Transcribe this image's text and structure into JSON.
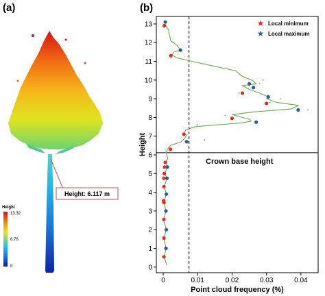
{
  "panel_a": {
    "label": "(a)",
    "callout": "Height: 6.117 m",
    "colorbar": {
      "title": "Height",
      "max": "13.32",
      "mid": "6.76",
      "min": "0"
    }
  },
  "panel_b": {
    "label": "(b)"
  },
  "chart_data": {
    "type": "line",
    "xlabel": "Point cloud frequency (%)",
    "ylabel": "Height",
    "xlim": [
      -0.002,
      0.045
    ],
    "ylim": [
      -0.3,
      13.4
    ],
    "xticks": [
      "0",
      "0.01",
      "0.02",
      "0.03",
      "0.04"
    ],
    "xtick_values": [
      0,
      0.01,
      0.02,
      0.03,
      0.04
    ],
    "yticks": [
      "0",
      "1",
      "2",
      "3",
      "4",
      "5",
      "6",
      "7",
      "8",
      "9",
      "10",
      "11",
      "12",
      "13"
    ],
    "crown_base_height": 6.117,
    "crown_base_label": "Crown base height",
    "dashed_x": 0.0075,
    "legend": [
      {
        "name": "Local minimum",
        "color": "#e8291c"
      },
      {
        "name": "Local maximum",
        "color": "#2a5e9b"
      }
    ],
    "series": [
      {
        "name": "",
        "color": "#6aa84f",
        "x": [
          0.001,
          0.0003,
          0.0008,
          0.0002,
          0.0009,
          0.0001,
          0.0008,
          0.0002,
          0.0009,
          0.0003,
          0.0011,
          0.0004,
          0.0012,
          0.0006,
          0.0013,
          0.0009,
          0.0012,
          0.0021,
          0.0052,
          0.0062,
          0.0068,
          0.006,
          0.0067,
          0.0091,
          0.0138,
          0.0188,
          0.0232,
          0.0255,
          0.025,
          0.023,
          0.02,
          0.0265,
          0.0372,
          0.0392,
          0.033,
          0.03,
          0.0305,
          0.028,
          0.025,
          0.023,
          0.027,
          0.0262,
          0.023,
          0.021,
          0.0145,
          0.0083,
          0.0038,
          0.0025,
          0.0032,
          0.005,
          0.004,
          0.0022,
          0.0018,
          0.0015,
          0.0008,
          0.0004,
          0.0006
        ],
        "y": [
          0.1,
          0.55,
          1.0,
          1.55,
          2.0,
          2.55,
          3.0,
          3.45,
          3.9,
          4.3,
          4.75,
          5.0,
          5.35,
          5.6,
          5.8,
          6.1,
          6.3,
          6.5,
          6.7,
          6.88,
          7.05,
          7.2,
          7.35,
          7.5,
          7.58,
          7.65,
          7.72,
          7.8,
          7.9,
          8.0,
          8.15,
          8.3,
          8.45,
          8.65,
          8.8,
          9.0,
          9.1,
          9.3,
          9.5,
          9.7,
          9.8,
          9.95,
          10.2,
          10.5,
          10.75,
          11.0,
          11.2,
          11.35,
          11.5,
          11.6,
          11.85,
          12.1,
          12.4,
          12.7,
          12.9,
          13.05,
          13.1
        ]
      }
    ],
    "local_minima": {
      "x": [
        0.0002,
        0.0002,
        0.0002,
        0.0002,
        0.0001,
        0.0002,
        0.0002,
        0.0003,
        0.0004,
        0.0006,
        0.0021,
        0.006,
        0.02,
        0.03,
        0.023,
        0.0022,
        0.0003
      ],
      "y": [
        0.55,
        1.55,
        2.55,
        3.45,
        3.55,
        4.3,
        4.75,
        5.0,
        5.35,
        5.6,
        6.3,
        7.1,
        7.95,
        8.75,
        9.3,
        11.3,
        12.9
      ]
    },
    "local_maxima": {
      "x": [
        0.0008,
        0.0009,
        0.0008,
        0.0009,
        0.0011,
        0.0012,
        0.0068,
        0.027,
        0.0392,
        0.0305,
        0.0262,
        0.025,
        0.005,
        0.0006
      ],
      "y": [
        1.0,
        2.0,
        3.0,
        3.9,
        4.75,
        5.35,
        6.7,
        7.75,
        8.4,
        9.1,
        9.6,
        9.8,
        11.6,
        13.1
      ]
    },
    "scatter_points": {
      "x": [
        0.042,
        0.031,
        0.022,
        0.034,
        0.029,
        0.018,
        0.028,
        0.024,
        0.01,
        0.012
      ],
      "y": [
        8.4,
        8.8,
        9.3,
        9.0,
        10.0,
        8.1,
        9.8,
        9.6,
        7.6,
        6.8
      ]
    }
  }
}
